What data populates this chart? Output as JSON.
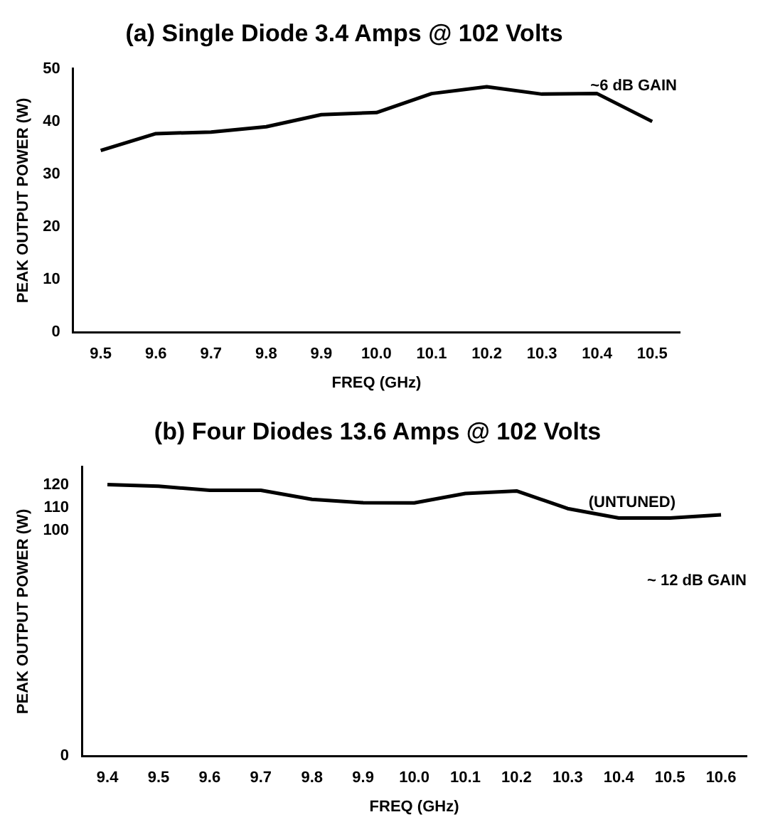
{
  "chart_data": [
    {
      "type": "line",
      "title": "(a) Single Diode 3.4 Amps @ 102 Volts",
      "xlabel": "FREQ (GHz)",
      "ylabel": "PEAK OUTPUT POWER (W)",
      "categories": [
        "9.5",
        "9.6",
        "9.7",
        "9.8",
        "9.9",
        "10.0",
        "10.1",
        "10.2",
        "10.3",
        "10.4",
        "10.5"
      ],
      "series": [
        {
          "color": "#000000",
          "values": [
            34.5,
            37.7,
            38,
            39,
            41.3,
            41.7,
            45.3,
            46.6,
            45.2,
            45.3,
            40
          ]
        }
      ],
      "ylim": [
        0,
        50
      ],
      "yticks": [
        0,
        10,
        20,
        30,
        40,
        50
      ],
      "marker": "none",
      "grid": false,
      "annotations": [
        "~6 dB GAIN"
      ]
    },
    {
      "type": "line",
      "title": "(b) Four Diodes 13.6 Amps @ 102 Volts",
      "xlabel": "FREQ (GHz)",
      "ylabel": "PEAK OUTPUT POWER (W)",
      "categories": [
        "9.4",
        "9.5",
        "9.6",
        "9.7",
        "9.8",
        "9.9",
        "10.0",
        "10.1",
        "10.2",
        "10.3",
        "10.4",
        "10.5",
        "10.6"
      ],
      "series": [
        {
          "color": "#000000",
          "values": [
            120.2,
            119.5,
            117.7,
            117.7,
            113.7,
            112.2,
            112.1,
            116.3,
            117.4,
            109.6,
            105.4,
            105.4,
            106.8
          ]
        }
      ],
      "ylim": [
        0,
        128
      ],
      "yticks": [
        0,
        100,
        110,
        120
      ],
      "marker": "none",
      "grid": false,
      "annotations": [
        "(UNTUNED)",
        "~ 12 dB GAIN"
      ]
    }
  ]
}
